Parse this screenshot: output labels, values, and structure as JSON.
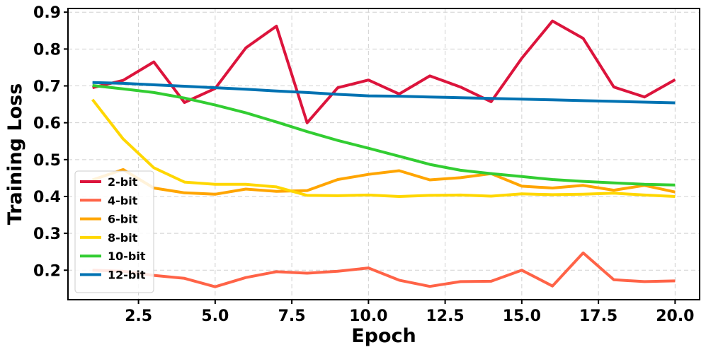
{
  "chart_data": {
    "type": "line",
    "title": "",
    "xlabel": "Epoch",
    "ylabel": "Training Loss",
    "xlim": [
      0.2,
      20.8
    ],
    "ylim": [
      0.12,
      0.91
    ],
    "xticks": [
      2.5,
      5.0,
      7.5,
      10.0,
      12.5,
      15.0,
      17.5,
      20.0
    ],
    "xtick_labels": [
      "2.5",
      "5.0",
      "7.5",
      "10.0",
      "12.5",
      "15.0",
      "17.5",
      "20.0"
    ],
    "yticks": [
      0.2,
      0.3,
      0.4,
      0.5,
      0.6,
      0.7,
      0.8,
      0.9
    ],
    "ytick_labels": [
      "0.2",
      "0.3",
      "0.4",
      "0.5",
      "0.6",
      "0.7",
      "0.8",
      "0.9"
    ],
    "grid": true,
    "legend_position": "lower-left",
    "x": [
      1,
      2,
      3,
      4,
      5,
      6,
      7,
      8,
      9,
      10,
      11,
      12,
      13,
      14,
      15,
      16,
      17,
      18,
      19,
      20
    ],
    "series": [
      {
        "name": "2-bit",
        "color": "#dc143c",
        "values": [
          0.695,
          0.715,
          0.765,
          0.655,
          0.693,
          0.803,
          0.862,
          0.6,
          0.695,
          0.716,
          0.678,
          0.727,
          0.697,
          0.657,
          0.775,
          0.876,
          0.829,
          0.697,
          0.67,
          0.717
        ]
      },
      {
        "name": "4-bit",
        "color": "#ff6347",
        "values": [
          0.2,
          0.197,
          0.186,
          0.178,
          0.155,
          0.18,
          0.196,
          0.192,
          0.197,
          0.206,
          0.173,
          0.156,
          0.169,
          0.17,
          0.2,
          0.157,
          0.247,
          0.174,
          0.169,
          0.171
        ]
      },
      {
        "name": "6-bit",
        "color": "#ffa500",
        "values": [
          0.445,
          0.473,
          0.423,
          0.41,
          0.406,
          0.42,
          0.414,
          0.416,
          0.446,
          0.46,
          0.47,
          0.445,
          0.451,
          0.462,
          0.428,
          0.423,
          0.43,
          0.417,
          0.43,
          0.412
        ]
      },
      {
        "name": "8-bit",
        "color": "#ffd700",
        "values": [
          0.663,
          0.556,
          0.478,
          0.439,
          0.433,
          0.433,
          0.426,
          0.403,
          0.402,
          0.404,
          0.4,
          0.403,
          0.404,
          0.401,
          0.407,
          0.405,
          0.406,
          0.409,
          0.404,
          0.4
        ]
      },
      {
        "name": "10-bit",
        "color": "#32cd32",
        "values": [
          0.701,
          0.692,
          0.682,
          0.667,
          0.648,
          0.627,
          0.602,
          0.576,
          0.552,
          0.531,
          0.509,
          0.487,
          0.471,
          0.462,
          0.454,
          0.446,
          0.441,
          0.437,
          0.433,
          0.431
        ]
      },
      {
        "name": "12-bit",
        "color": "#0072b2",
        "values": [
          0.709,
          0.707,
          0.703,
          0.699,
          0.695,
          0.691,
          0.686,
          0.682,
          0.677,
          0.673,
          0.672,
          0.67,
          0.668,
          0.666,
          0.664,
          0.662,
          0.66,
          0.658,
          0.656,
          0.654
        ]
      }
    ]
  }
}
